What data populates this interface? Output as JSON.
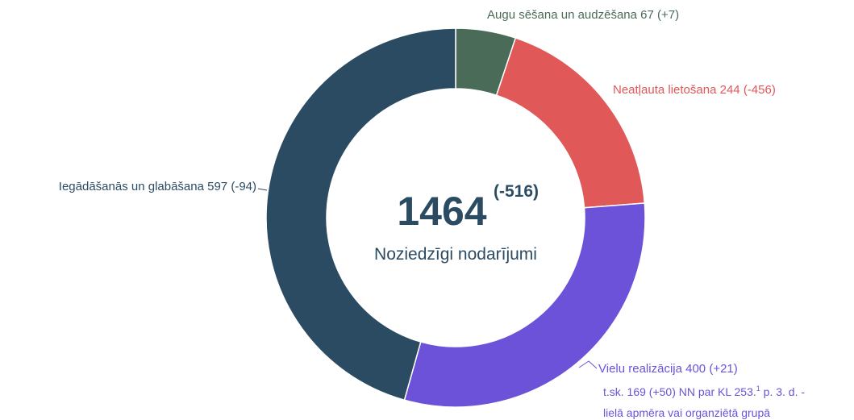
{
  "chart_data": {
    "type": "donut",
    "total": 1464,
    "total_change": "(-516)",
    "center_label": "Noziedzīgi nodarījumi",
    "categories": [
      "Augu sēšana un audzēšana",
      "Neatļauta lietošana",
      "Vielu realizācija",
      "Iegādāšanās un glabāšana"
    ],
    "values": [
      67,
      244,
      400,
      597
    ],
    "changes": [
      "(+7)",
      "(-456)",
      "(+21)",
      "(-94)"
    ],
    "colors": [
      "#4a6b58",
      "#e05858",
      "#6b52d9",
      "#2b4b63"
    ],
    "annotation": {
      "line1": "t.sk. 169 (+50) NN par KL 253.",
      "sup": "1",
      "line1_end": " p. 3. d. -",
      "line2": "lielā apmēra vai organziētā grupā"
    }
  }
}
